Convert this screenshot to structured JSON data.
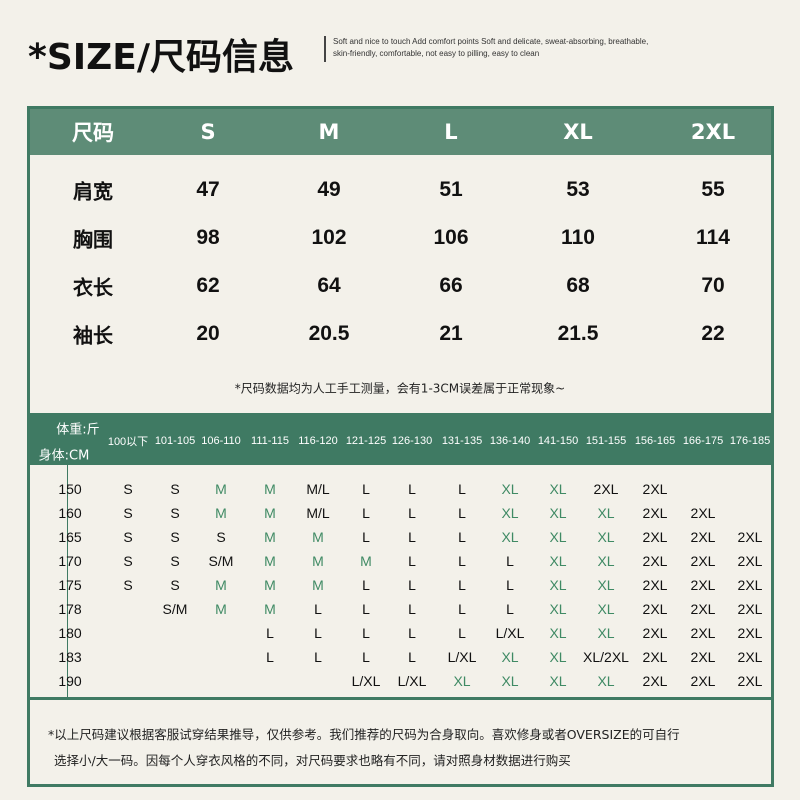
{
  "header": {
    "title": "*SIZE/尺码信息",
    "tagline": "Soft and nice to touch Add comfort points Soft and delicate, sweat-absorbing, breathable, skin-friendly, comfortable, not easy to pilling, easy to clean"
  },
  "size_table": {
    "header": [
      "尺码",
      "S",
      "M",
      "L",
      "XL",
      "2XL"
    ],
    "rows": [
      {
        "label": "肩宽",
        "values": [
          "47",
          "49",
          "51",
          "53",
          "55"
        ]
      },
      {
        "label": "胸围",
        "values": [
          "98",
          "102",
          "106",
          "110",
          "114"
        ]
      },
      {
        "label": "衣长",
        "values": [
          "62",
          "64",
          "66",
          "68",
          "70"
        ]
      },
      {
        "label": "袖长",
        "values": [
          "20",
          "20.5",
          "21",
          "21.5",
          "22"
        ]
      }
    ],
    "note": "*尺码数据均为人工手工测量，会有1-3CM误差属于正常现象~"
  },
  "fit_table": {
    "weight_label": "体重:斤",
    "height_label": "身体:CM",
    "weights": [
      "100以下",
      "101-105",
      "106-110",
      "111-115",
      "116-120",
      "121-125",
      "126-130",
      "131-135",
      "136-140",
      "141-150",
      "151-155",
      "156-165",
      "166-175",
      "176-185"
    ],
    "rows": [
      {
        "height": "150",
        "sizes": [
          "S",
          "S",
          "M",
          "M",
          "M/L",
          "L",
          "L",
          "L",
          "XL",
          "XL",
          "2XL",
          "2XL",
          "",
          ""
        ]
      },
      {
        "height": "160",
        "sizes": [
          "S",
          "S",
          "M",
          "M",
          "M/L",
          "L",
          "L",
          "L",
          "XL",
          "XL",
          "XL",
          "2XL",
          "2XL",
          ""
        ]
      },
      {
        "height": "165",
        "sizes": [
          "S",
          "S",
          "S",
          "M",
          "M",
          "L",
          "L",
          "L",
          "XL",
          "XL",
          "XL",
          "2XL",
          "2XL",
          "2XL"
        ]
      },
      {
        "height": "170",
        "sizes": [
          "S",
          "S",
          "S/M",
          "M",
          "M",
          "M",
          "L",
          "L",
          "L",
          "XL",
          "XL",
          "2XL",
          "2XL",
          "2XL"
        ]
      },
      {
        "height": "175",
        "sizes": [
          "S",
          "S",
          "M",
          "M",
          "M",
          "L",
          "L",
          "L",
          "L",
          "XL",
          "XL",
          "2XL",
          "2XL",
          "2XL"
        ]
      },
      {
        "height": "178",
        "sizes": [
          "",
          "S/M",
          "M",
          "M",
          "L",
          "L",
          "L",
          "L",
          "L",
          "XL",
          "XL",
          "2XL",
          "2XL",
          "2XL"
        ]
      },
      {
        "height": "180",
        "sizes": [
          "",
          "",
          "",
          "L",
          "L",
          "L",
          "L",
          "L",
          "L/XL",
          "XL",
          "XL",
          "2XL",
          "2XL",
          "2XL"
        ]
      },
      {
        "height": "183",
        "sizes": [
          "",
          "",
          "",
          "L",
          "L",
          "L",
          "L",
          "L/XL",
          "XL",
          "XL",
          "XL/2XL",
          "2XL",
          "2XL",
          "2XL"
        ]
      },
      {
        "height": "190",
        "sizes": [
          "",
          "",
          "",
          "",
          "",
          "L/XL",
          "L/XL",
          "XL",
          "XL",
          "XL",
          "XL",
          "2XL",
          "2XL",
          "2XL"
        ]
      }
    ],
    "highlight_sizes": [
      "M",
      "XL"
    ]
  },
  "footer_note": {
    "line1": "*以上尺码建议根据客服试穿结果推导，仅供参考。我们推荐的尺码为合身取向。喜欢修身或者OVERSIZE的可自行",
    "line2": "选择小/大一码。因每个人穿衣风格的不同，对尺码要求也略有不同，请对照身材数据进行购买"
  },
  "colors": {
    "brand_green": "#3f7a63",
    "header_green": "#5e8c77",
    "highlight_text": "#3f8a64",
    "background": "#f3f1ea"
  }
}
